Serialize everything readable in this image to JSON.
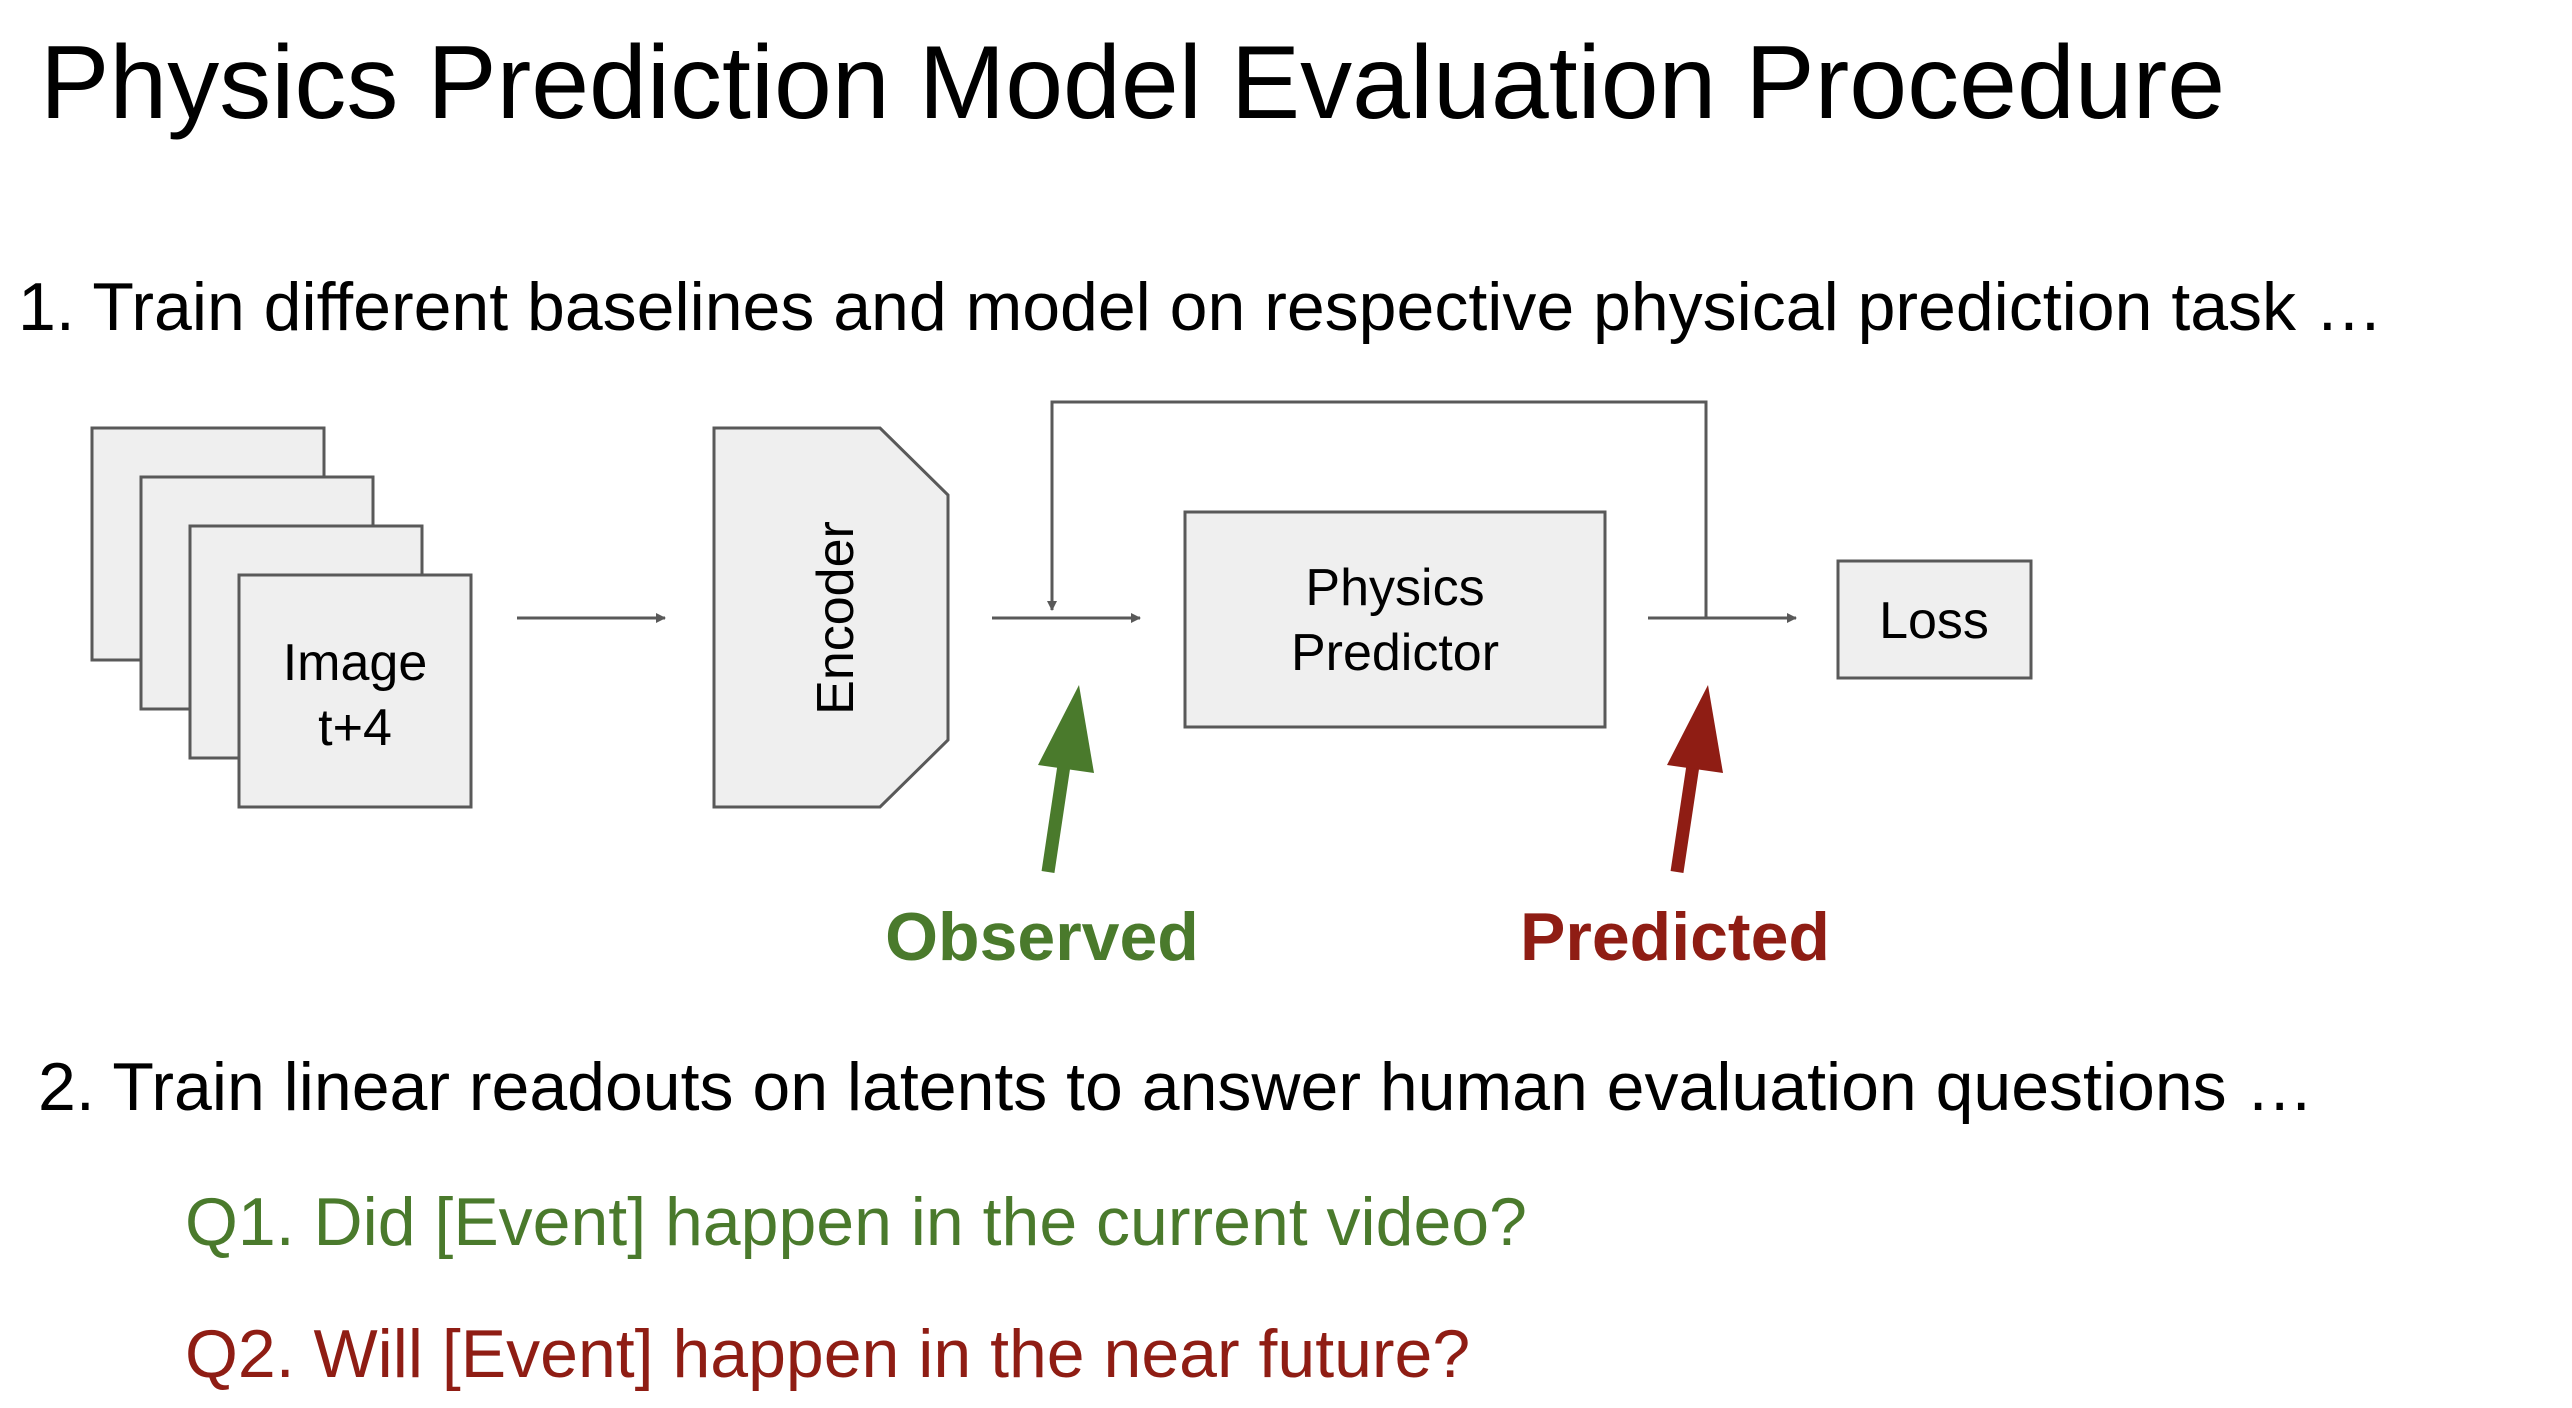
{
  "title": "Physics Prediction Model Evaluation Procedure",
  "steps": {
    "step1": "1. Train different baselines and model on respective physical prediction task …",
    "step2": "2. Train linear readouts on latents to answer human evaluation questions …"
  },
  "diagram": {
    "image_stack_label_line1": "Image",
    "image_stack_label_line2": "t+4",
    "encoder_label": "Encoder",
    "predictor_label_line1": "Physics",
    "predictor_label_line2": "Predictor",
    "loss_label": "Loss",
    "observed_label": "Observed",
    "predicted_label": "Predicted"
  },
  "questions": {
    "q1": "Q1. Did [Event] happen in the current video?",
    "q2": "Q2. Will [Event] happen in the near future?"
  },
  "colors": {
    "box_fill": "#efefef",
    "box_stroke": "#595959",
    "connector": "#595959",
    "observed": "#4a7a2c",
    "predicted": "#8f1d14",
    "text": "#000000"
  }
}
